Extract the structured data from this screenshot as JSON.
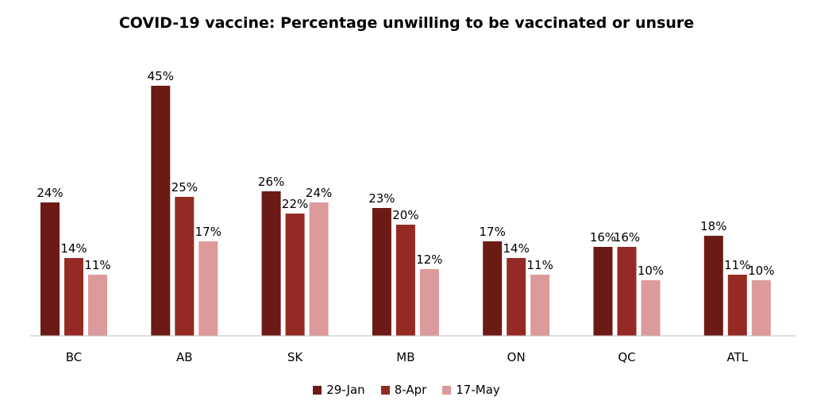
{
  "chart_data": {
    "type": "bar",
    "title": "COVID-19 vaccine: Percentage unwilling to be vaccinated or unsure",
    "xlabel": "",
    "ylabel": "",
    "categories": [
      "BC",
      "AB",
      "SK",
      "MB",
      "ON",
      "QC",
      "ATL"
    ],
    "series": [
      {
        "name": "29-Jan",
        "color": "#6B1A16",
        "values": [
          24,
          45,
          26,
          23,
          17,
          16,
          18
        ]
      },
      {
        "name": "8-Apr",
        "color": "#952A24",
        "values": [
          14,
          25,
          22,
          20,
          14,
          16,
          11
        ]
      },
      {
        "name": "17-May",
        "color": "#DC9A9A",
        "values": [
          11,
          17,
          24,
          12,
          11,
          10,
          10
        ]
      }
    ],
    "value_suffix": "%",
    "ylim": [
      0,
      45
    ],
    "grid": false,
    "legend_position": "bottom"
  }
}
